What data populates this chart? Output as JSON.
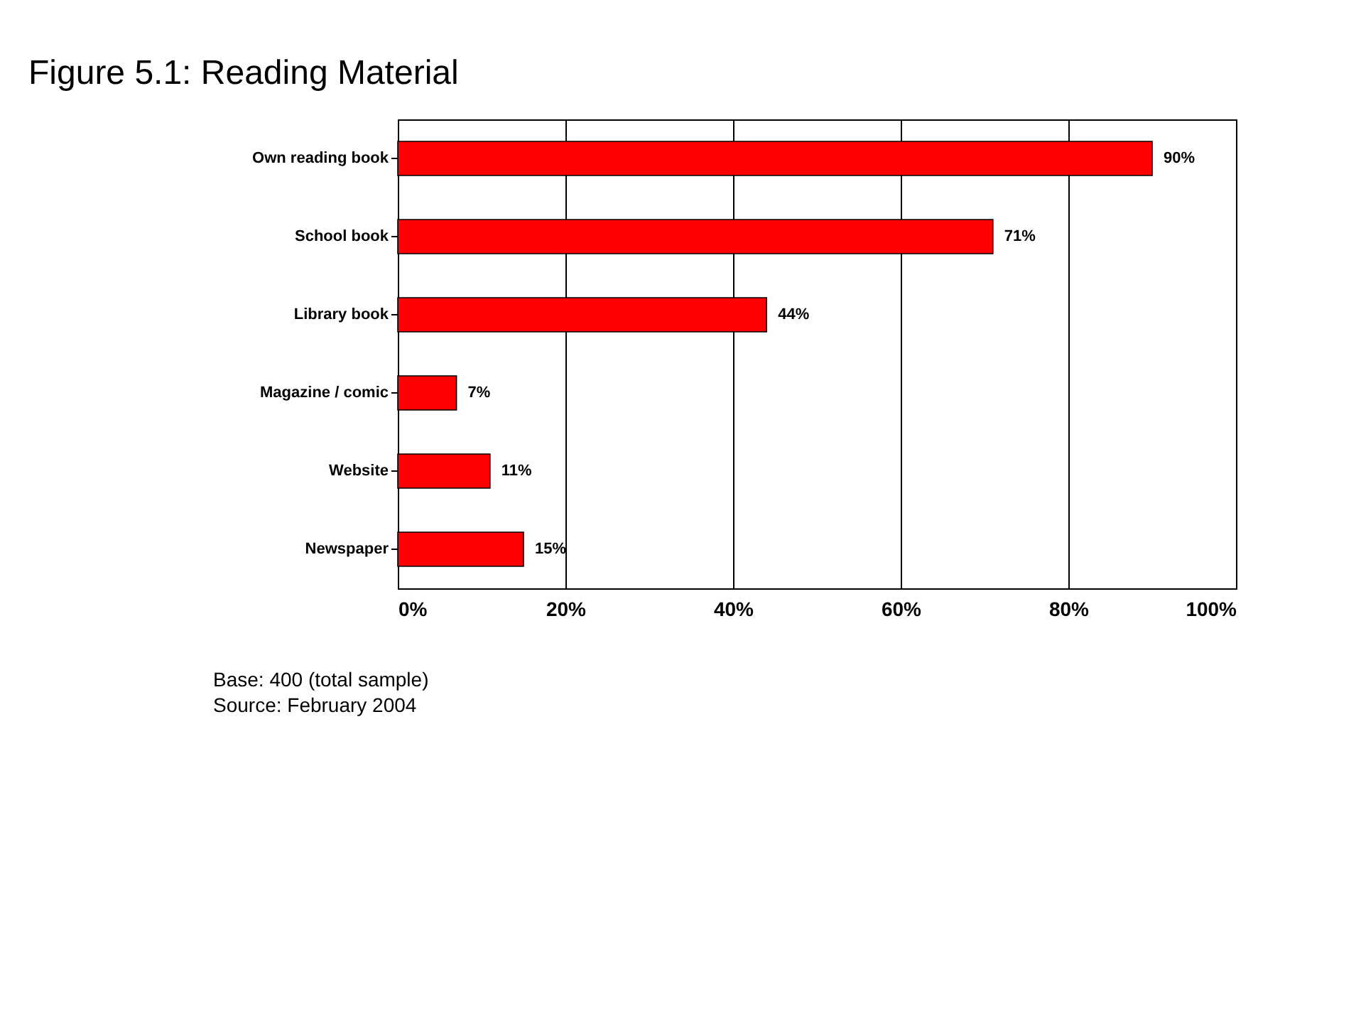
{
  "chart_data": {
    "type": "bar",
    "orientation": "horizontal",
    "title": "Figure 5.1:  Reading Material",
    "categories": [
      "Own reading book",
      "School book",
      "Library book",
      "Magazine / comic",
      "Website",
      "Newspaper"
    ],
    "values": [
      90,
      71,
      44,
      7,
      11,
      15
    ],
    "color": "#ff0000",
    "value_labels": [
      "90%",
      "71%",
      "44%",
      "7%",
      "11%",
      "15%"
    ],
    "xlim": [
      0,
      100
    ],
    "xticks": [
      {
        "value": 0,
        "label": "0%"
      },
      {
        "value": 20,
        "label": "20%"
      },
      {
        "value": 40,
        "label": "40%"
      },
      {
        "value": 60,
        "label": "60%"
      },
      {
        "value": 80,
        "label": "80%"
      },
      {
        "value": 100,
        "label": "100%"
      }
    ],
    "grid": "x",
    "annotations": [
      "Base:      400 (total sample)",
      "Source:   February 2004"
    ]
  }
}
